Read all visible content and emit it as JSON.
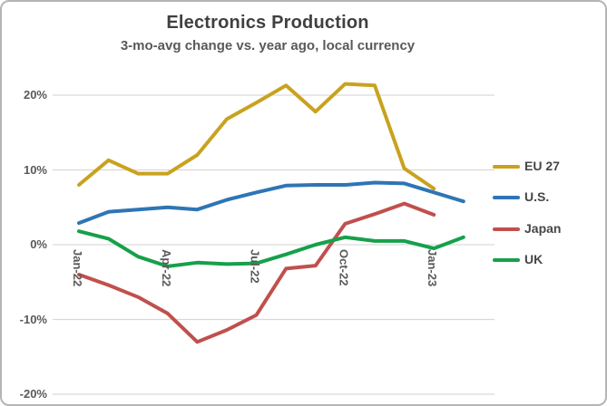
{
  "header": {
    "title": "Electronics Production",
    "subtitle": "3-mo-avg change vs. year ago, local currency"
  },
  "chart_data": {
    "type": "line",
    "x": [
      "Jan-22",
      "Feb-22",
      "Mar-22",
      "Apr-22",
      "May-22",
      "Jun-22",
      "Jul-22",
      "Aug-22",
      "Sep-22",
      "Oct-22",
      "Nov-22",
      "Dec-22",
      "Jan-23",
      "Feb-23"
    ],
    "x_tick_labels": [
      "Jan-22",
      "Apr-22",
      "Jul-22",
      "Oct-22",
      "Jan-23"
    ],
    "y_ticks": [
      20,
      10,
      0,
      -10,
      -20
    ],
    "y_tick_labels": [
      "20%",
      "10%",
      "0%",
      "-10%",
      "-20%"
    ],
    "ylim": [
      -20,
      23
    ],
    "unit": "%",
    "grid": "horizontal",
    "legend_position": "right",
    "series": [
      {
        "name": "EU 27",
        "color": "#C9A21E",
        "values": [
          8,
          11.3,
          9.5,
          9.5,
          12,
          16.8,
          19,
          21.3,
          17.8,
          21.5,
          21.3,
          10.2,
          7.5,
          null
        ]
      },
      {
        "name": "U.S.",
        "color": "#2E75B6",
        "values": [
          2.9,
          4.4,
          4.7,
          5.0,
          4.7,
          6.0,
          7.0,
          7.9,
          8.0,
          8.0,
          8.3,
          8.2,
          7.0,
          5.8
        ]
      },
      {
        "name": "Japan",
        "color": "#C0504D",
        "values": [
          -4.0,
          -5.4,
          -7.0,
          -9.2,
          -13.0,
          -11.4,
          -9.4,
          -3.2,
          -2.8,
          2.8,
          4.1,
          5.5,
          4.0,
          null
        ]
      },
      {
        "name": "UK",
        "color": "#16A04A",
        "values": [
          1.8,
          0.8,
          -1.6,
          -2.9,
          -2.4,
          -2.6,
          -2.5,
          -1.3,
          0.0,
          1.0,
          0.5,
          0.5,
          -0.5,
          1.0
        ]
      }
    ],
    "gridline_color": "#D9D9D9"
  }
}
